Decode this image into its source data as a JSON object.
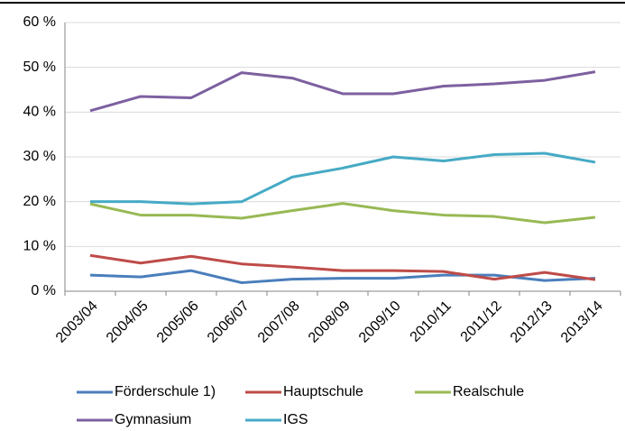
{
  "chart_data": {
    "type": "line",
    "categories": [
      "2003/04",
      "2004/05",
      "2005/06",
      "2006/07",
      "2007/08",
      "2008/09",
      "2009/10",
      "2010/11",
      "2011/12",
      "2012/13",
      "2013/14"
    ],
    "series": [
      {
        "name": "Förderschule 1)",
        "color": "#4a7ebb",
        "values": [
          3.6,
          3.2,
          4.6,
          1.9,
          2.7,
          2.9,
          2.9,
          3.6,
          3.6,
          2.4,
          2.9
        ]
      },
      {
        "name": "Hauptschule",
        "color": "#be4b48",
        "values": [
          8.0,
          6.3,
          7.8,
          6.1,
          5.4,
          4.6,
          4.6,
          4.4,
          2.7,
          4.2,
          2.6
        ]
      },
      {
        "name": "Realschule",
        "color": "#98b954",
        "values": [
          19.5,
          17.0,
          17.0,
          16.3,
          18.0,
          19.6,
          18.0,
          17.0,
          16.7,
          15.3,
          16.5
        ]
      },
      {
        "name": "Gymnasium",
        "color": "#7d60a0",
        "values": [
          40.3,
          43.5,
          43.2,
          48.8,
          47.6,
          44.1,
          44.1,
          45.8,
          46.3,
          47.1,
          49.0
        ]
      },
      {
        "name": "IGS",
        "color": "#46aac5",
        "values": [
          20.0,
          20.0,
          19.5,
          20.0,
          25.5,
          27.5,
          30.0,
          29.1,
          30.5,
          30.8,
          28.8
        ]
      }
    ],
    "ylim": [
      0,
      60
    ],
    "yticks": [
      {
        "value": 0,
        "label": "0 %"
      },
      {
        "value": 10,
        "label": "10 %"
      },
      {
        "value": 20,
        "label": "20 %"
      },
      {
        "value": 30,
        "label": "30 %"
      },
      {
        "value": 40,
        "label": "40 %"
      },
      {
        "value": 50,
        "label": "50 %"
      },
      {
        "value": 60,
        "label": "60 %"
      }
    ],
    "grid": true
  }
}
